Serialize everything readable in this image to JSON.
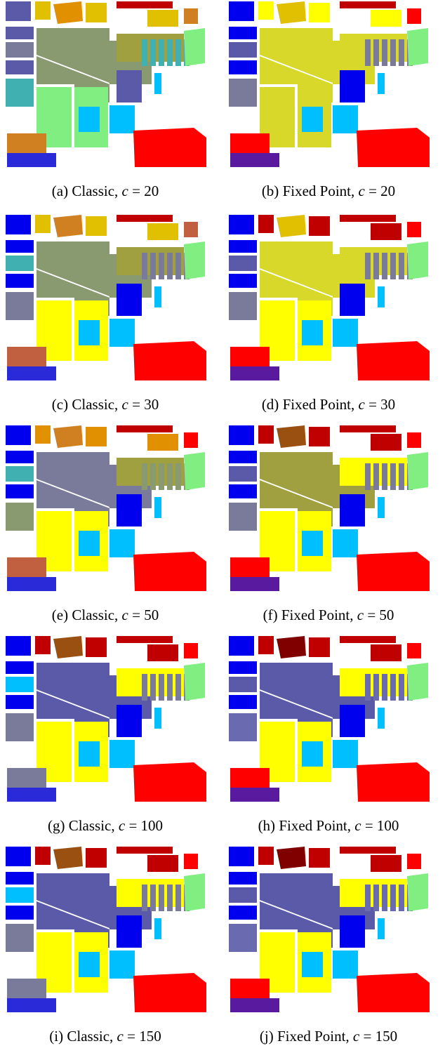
{
  "figures": [
    {
      "id": "a",
      "label": "(a)",
      "method": "Classic",
      "var": "c",
      "value": "20"
    },
    {
      "id": "b",
      "label": "(b)",
      "method": "Fixed Point",
      "var": "c",
      "value": "20"
    },
    {
      "id": "c",
      "label": "(c)",
      "method": "Classic",
      "var": "c",
      "value": "30"
    },
    {
      "id": "d",
      "label": "(d)",
      "method": "Fixed Point",
      "var": "c",
      "value": "30"
    },
    {
      "id": "e",
      "label": "(e)",
      "method": "Classic",
      "var": "c",
      "value": "50"
    },
    {
      "id": "f",
      "label": "(f)",
      "method": "Fixed Point",
      "var": "c",
      "value": "50"
    },
    {
      "id": "g",
      "label": "(g)",
      "method": "Classic",
      "var": "c",
      "value": "100"
    },
    {
      "id": "h",
      "label": "(h)",
      "method": "Fixed Point",
      "var": "c",
      "value": "100"
    },
    {
      "id": "i",
      "label": "(i)",
      "method": "Classic",
      "var": "c",
      "value": "150"
    },
    {
      "id": "j",
      "label": "(j)",
      "method": "Fixed Point",
      "var": "c",
      "value": "150"
    }
  ],
  "colors": {
    "yellow": "#ffff00",
    "olive_yellow": "#d8d82a",
    "blue": "#0000ee",
    "medium_blue": "#2a2ad8",
    "slate": "#5a5aa8",
    "light_slate": "#6a6ab0",
    "gray_blue": "#7a7a9a",
    "sky": "#00bfff",
    "light_green": "#80ee80",
    "red": "#ff0000",
    "dark_red": "#c00000",
    "orange": "#e09000",
    "dark_orange": "#d08020",
    "gold": "#e0c000",
    "sage": "#8a9a70",
    "olive": "#a0a040",
    "teal": "#40b0b0",
    "purple": "#5a1aa0",
    "brick": "#c06040",
    "brown": "#9a5010",
    "maroon": "#800000"
  }
}
